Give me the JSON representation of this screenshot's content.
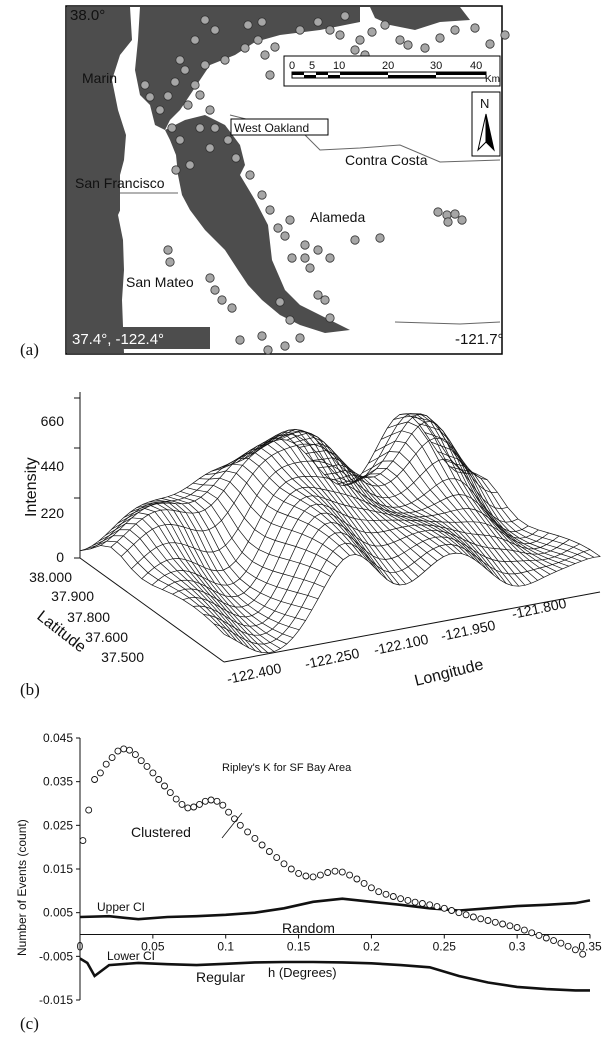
{
  "panel_a": {
    "letter": "(a)",
    "corner_top_left": "38.0°",
    "corner_bottom_left": "37.4°, -122.4°",
    "corner_bottom_right": "-121.7°",
    "labels": {
      "marin": "Marin",
      "west_oakland": "West Oakland",
      "contra_costa": "Contra Costa",
      "san_francisco": "San Francisco",
      "alameda": "Alameda",
      "san_mateo": "San Mateo"
    },
    "scalebar": {
      "ticks": [
        "0",
        "5",
        "10",
        "20",
        "30",
        "40"
      ],
      "unit": "Km"
    },
    "north": "N",
    "colors": {
      "water": "#4d4d4d",
      "land": "#ffffff",
      "points": "#a6a6a6"
    }
  },
  "panel_b": {
    "letter": "(b)",
    "z_label": "Intensity",
    "z_ticks": [
      "0",
      "220",
      "440",
      "660"
    ],
    "lat_label": "Latitude",
    "lat_ticks": [
      "38.000",
      "37.900",
      "37.800",
      "37.600",
      "37.500"
    ],
    "lon_label": "Longitude",
    "lon_ticks": [
      "-122.400",
      "-122.250",
      "-122.100",
      "-121.950",
      "-121.800"
    ]
  },
  "panel_c": {
    "letter": "(c)",
    "y_label": "Number of Events (count)",
    "x_label": "h (Degrees)",
    "annotations": {
      "ripley": "Ripley's K for SF Bay Area",
      "clustered": "Clustered",
      "random": "Random",
      "regular": "Regular",
      "upper_ci": "Upper CI",
      "lower_ci": "Lower CI"
    }
  },
  "chart_data": {
    "type": "scatter",
    "title": "",
    "xlabel": "h (Degrees)",
    "ylabel": "Number of Events (count)",
    "xlim": [
      0,
      0.35
    ],
    "ylim": [
      -0.015,
      0.045
    ],
    "x_ticks": [
      "0",
      "0.05",
      "0.1",
      "0.15",
      "0.2",
      "0.25",
      "0.3",
      "0.35"
    ],
    "y_ticks": [
      "0.045",
      "0.035",
      "0.025",
      "0.015",
      "0.005",
      "-0.005",
      "-0.015"
    ],
    "series": [
      {
        "name": "Ripley's K for SF Bay Area",
        "x": [
          0.002,
          0.006,
          0.01,
          0.014,
          0.018,
          0.022,
          0.026,
          0.03,
          0.034,
          0.038,
          0.042,
          0.046,
          0.05,
          0.054,
          0.058,
          0.062,
          0.066,
          0.07,
          0.074,
          0.078,
          0.082,
          0.086,
          0.09,
          0.094,
          0.098,
          0.102,
          0.106,
          0.11,
          0.115,
          0.12,
          0.125,
          0.13,
          0.135,
          0.14,
          0.145,
          0.15,
          0.155,
          0.16,
          0.165,
          0.17,
          0.175,
          0.18,
          0.185,
          0.19,
          0.195,
          0.2,
          0.205,
          0.21,
          0.215,
          0.22,
          0.225,
          0.23,
          0.235,
          0.24,
          0.245,
          0.25,
          0.255,
          0.26,
          0.265,
          0.27,
          0.275,
          0.28,
          0.285,
          0.29,
          0.295,
          0.3,
          0.305,
          0.31,
          0.315,
          0.32,
          0.325,
          0.33,
          0.335,
          0.34,
          0.345
        ],
        "y": [
          0.0215,
          0.0285,
          0.0355,
          0.037,
          0.039,
          0.0405,
          0.042,
          0.0425,
          0.0422,
          0.0412,
          0.0398,
          0.0385,
          0.037,
          0.0355,
          0.034,
          0.0325,
          0.031,
          0.0298,
          0.029,
          0.0292,
          0.0298,
          0.0305,
          0.0308,
          0.0305,
          0.0296,
          0.028,
          0.0265,
          0.025,
          0.0235,
          0.022,
          0.0205,
          0.019,
          0.0176,
          0.0162,
          0.015,
          0.014,
          0.0134,
          0.0132,
          0.0136,
          0.0142,
          0.0145,
          0.0143,
          0.0136,
          0.0127,
          0.0117,
          0.0107,
          0.0098,
          0.0092,
          0.0087,
          0.0082,
          0.0078,
          0.0074,
          0.0071,
          0.0068,
          0.0064,
          0.006,
          0.0055,
          0.005,
          0.0045,
          0.004,
          0.0036,
          0.0032,
          0.0028,
          0.0024,
          0.002,
          0.0016,
          0.001,
          0.0004,
          -0.0002,
          -0.0008,
          -0.0014,
          -0.002,
          -0.0027,
          -0.0035,
          -0.0045
        ]
      },
      {
        "name": "Upper CI",
        "x": [
          0.0,
          0.02,
          0.04,
          0.06,
          0.08,
          0.1,
          0.12,
          0.14,
          0.16,
          0.18,
          0.2,
          0.22,
          0.24,
          0.26,
          0.28,
          0.3,
          0.32,
          0.34,
          0.35
        ],
        "y": [
          0.004,
          0.0042,
          0.0035,
          0.004,
          0.0042,
          0.0045,
          0.005,
          0.006,
          0.0075,
          0.0082,
          0.0075,
          0.0068,
          0.006,
          0.0055,
          0.006,
          0.0065,
          0.0068,
          0.0072,
          0.0078
        ]
      },
      {
        "name": "Lower CI",
        "x": [
          0.0,
          0.005,
          0.01,
          0.02,
          0.04,
          0.06,
          0.08,
          0.1,
          0.12,
          0.14,
          0.16,
          0.18,
          0.2,
          0.22,
          0.24,
          0.26,
          0.28,
          0.3,
          0.32,
          0.34,
          0.35
        ],
        "y": [
          -0.0055,
          -0.0065,
          -0.0095,
          -0.007,
          -0.0065,
          -0.0068,
          -0.007,
          -0.0067,
          -0.0064,
          -0.0063,
          -0.0063,
          -0.0064,
          -0.0066,
          -0.007,
          -0.0075,
          -0.0095,
          -0.011,
          -0.012,
          -0.0125,
          -0.0128,
          -0.0128
        ]
      }
    ]
  }
}
